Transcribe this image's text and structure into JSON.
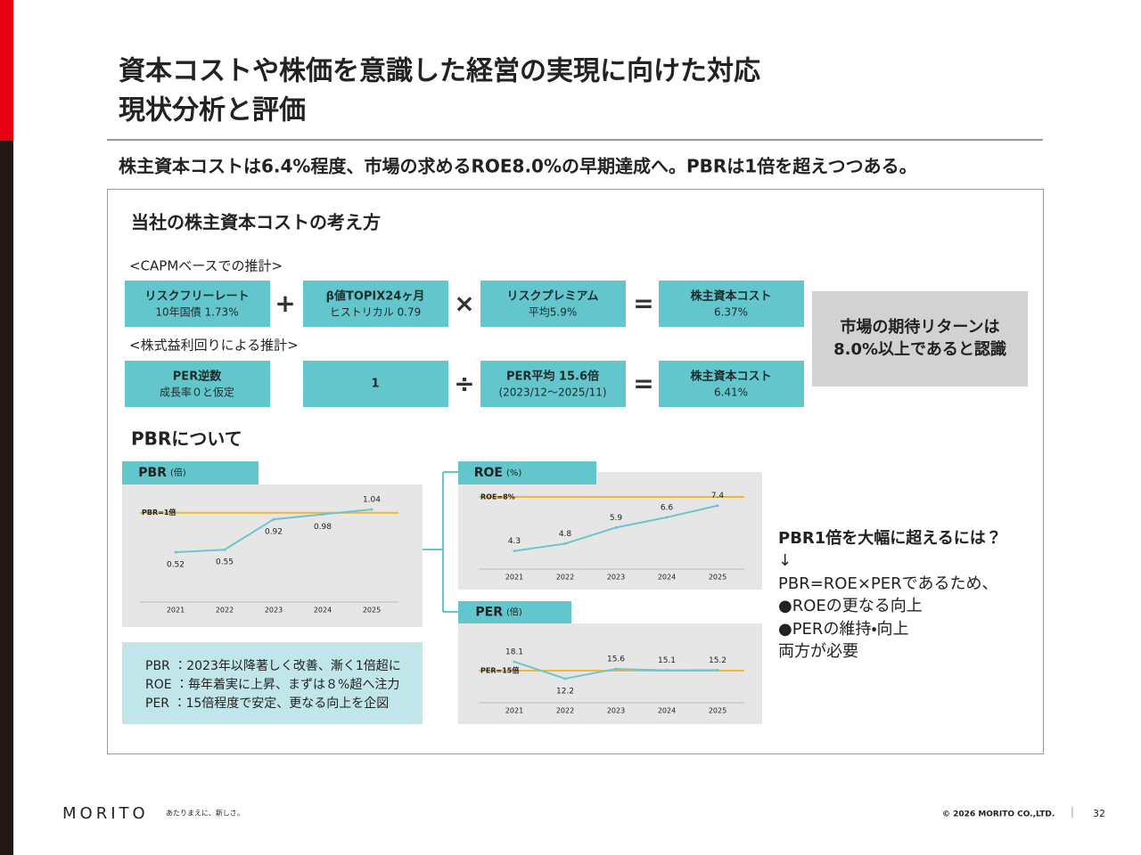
{
  "header": {
    "title_lines": [
      "資本コストや株価を意識した経営の実現に向けた対応",
      "現状分析と評価"
    ],
    "subtitle": "株主資本コストは6.4%程度、市場の求めるROE8.0%の早期達成へ。PBRは1倍を超えつつある。"
  },
  "capm": {
    "heading": "当社の株主資本コストの考え方",
    "methods": [
      {
        "label": "<CAPMベースでの推計>",
        "boxes": [
          [
            "リスクフリーレート",
            "10年国債 1.73%"
          ],
          [
            "β値TOPIX24ヶ月",
            "ヒストリカル 0.79"
          ],
          [
            "リスクプレミアム",
            "平均5.9%"
          ],
          [
            "株主資本コスト",
            "6.37%"
          ]
        ],
        "operators": [
          "+",
          "×",
          "="
        ]
      },
      {
        "label": "<株式益利回りによる推計>",
        "boxes": [
          [
            "PER逆数",
            "成長率０と仮定"
          ],
          [
            "1"
          ],
          [
            "PER平均 15.6倍",
            "(2023/12～2025/11)"
          ],
          [
            "株主資本コスト",
            "6.41%"
          ]
        ],
        "operators": [
          "÷",
          "="
        ]
      }
    ],
    "result_lines": [
      "市場の期待リターンは",
      "8.0%以上であると認識"
    ]
  },
  "pbr": {
    "heading": "PBRについて",
    "notes": [
      "PBR ：2023年以降著しく改善、漸く1倍超に",
      "ROE ：毎年着実に上昇、まずは８%超へ注力",
      "PER ：15倍程度で安定、更なる向上を企図"
    ],
    "right_lines": [
      "PBR1倍を大幅に超えるには？",
      "↓",
      "PBR=ROE×PERであるため、",
      "●ROEの更なる向上",
      "●PERの維持・向上",
      "両方が必要"
    ]
  },
  "chart_data": [
    {
      "type": "line",
      "title": "PBR",
      "unit": "(倍)",
      "categories": [
        "2021",
        "2022",
        "2023",
        "2024",
        "2025"
      ],
      "values": [
        0.52,
        0.55,
        0.92,
        0.98,
        1.04
      ],
      "color": "#6cc5cf",
      "ylim": [
        0,
        1.3
      ],
      "reference": {
        "label": "PBR=1倍",
        "value": 1,
        "color": "#f2b634"
      }
    },
    {
      "type": "line",
      "title": "ROE",
      "unit": "(%)",
      "categories": [
        "2021",
        "2022",
        "2023",
        "2024",
        "2025"
      ],
      "values": [
        4.3,
        4.8,
        5.9,
        6.6,
        7.4
      ],
      "color": "#6cc5cf",
      "ylim": [
        3,
        8.6
      ],
      "reference": {
        "label": "ROE=8%",
        "value": 8,
        "color": "#f2b634"
      }
    },
    {
      "type": "line",
      "title": "PER",
      "unit": "(倍)",
      "categories": [
        "2021",
        "2022",
        "2023",
        "2024",
        "2025"
      ],
      "values": [
        18.1,
        12.2,
        15.6,
        15.1,
        15.2
      ],
      "color": "#6cc5cf",
      "ylim": [
        5,
        30
      ],
      "reference": {
        "label": "PER=15倍",
        "value": 15,
        "color": "#f2b634"
      }
    }
  ],
  "footer": {
    "logo": "MORITO",
    "tagline": "あたりまえに、新しさ。",
    "copyright": "© 2026 MORITO CO.,LTD.",
    "page": "32"
  }
}
